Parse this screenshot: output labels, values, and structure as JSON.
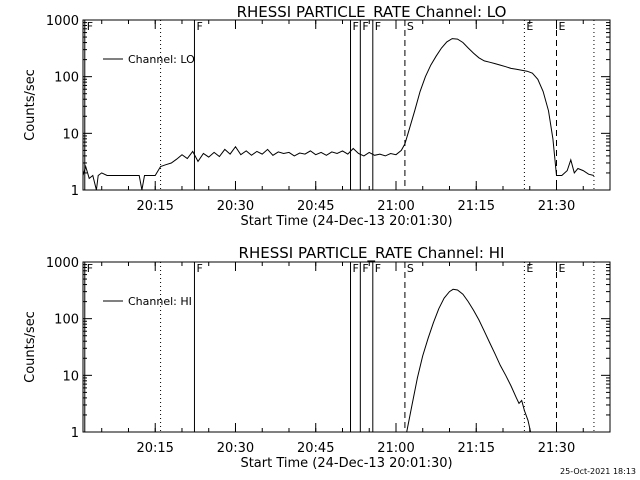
{
  "chart_data": [
    {
      "type": "line",
      "title": "RHESSI PARTICLE_RATE Channel: LO",
      "xlabel": "Start Time (24-Dec-13 20:01:30)",
      "ylabel": "Counts/sec",
      "yscale": "log",
      "xlim": [
        "20:01:30",
        "21:40:00"
      ],
      "ylim": [
        1,
        1000
      ],
      "x_ticks": [
        "20:15",
        "20:30",
        "20:45",
        "21:00",
        "21:15",
        "21:30"
      ],
      "y_ticks": [
        "1",
        "10",
        "100",
        "1000"
      ],
      "legend": {
        "placement": "top-left",
        "entries": [
          "Channel: LO"
        ]
      },
      "grid": false,
      "flag_markers": [
        {
          "label": "F",
          "time": "20:01:50",
          "style": "solid"
        },
        {
          "label": "F",
          "time": "20:22:20",
          "style": "solid"
        },
        {
          "label": "F",
          "time": "20:51:30",
          "style": "solid"
        },
        {
          "label": "F",
          "time": "20:53:20",
          "style": "solid"
        },
        {
          "label": "F",
          "time": "20:55:40",
          "style": "solid"
        },
        {
          "label": "S",
          "time": "21:01:40",
          "style": "dashed"
        },
        {
          "label": "E",
          "time": "21:24:00",
          "style": "dotted"
        },
        {
          "label": "E",
          "time": "21:30:00",
          "style": "dashed"
        }
      ],
      "unlabeled_markers": [
        {
          "time": "20:16:00",
          "style": "dotted"
        },
        {
          "time": "21:37:00",
          "style": "dotted"
        }
      ],
      "series": [
        {
          "name": "Channel: LO",
          "points": [
            [
              "20:01:30",
              1.8
            ],
            [
              "20:02:00",
              2.6
            ],
            [
              "20:02:40",
              1.6
            ],
            [
              "20:03:20",
              1.8
            ],
            [
              "20:04:00",
              1.0
            ],
            [
              "20:04:20",
              1.8
            ],
            [
              "20:05:00",
              2.0
            ],
            [
              "20:06:00",
              1.8
            ],
            [
              "20:08:00",
              1.8
            ],
            [
              "20:10:00",
              1.8
            ],
            [
              "20:12:00",
              1.8
            ],
            [
              "20:12:30",
              1.0
            ],
            [
              "20:13:00",
              1.8
            ],
            [
              "20:15:00",
              1.8
            ],
            [
              "20:16:00",
              2.6
            ],
            [
              "20:17:00",
              2.8
            ],
            [
              "20:18:00",
              3.0
            ],
            [
              "20:19:00",
              3.5
            ],
            [
              "20:20:00",
              4.2
            ],
            [
              "20:21:00",
              3.6
            ],
            [
              "20:22:00",
              4.8
            ],
            [
              "20:23:00",
              3.2
            ],
            [
              "20:24:00",
              4.4
            ],
            [
              "20:25:00",
              3.8
            ],
            [
              "20:26:00",
              4.6
            ],
            [
              "20:27:00",
              3.9
            ],
            [
              "20:28:00",
              5.2
            ],
            [
              "20:29:00",
              4.3
            ],
            [
              "20:30:00",
              5.8
            ],
            [
              "20:31:00",
              4.2
            ],
            [
              "20:32:00",
              4.9
            ],
            [
              "20:33:00",
              4.1
            ],
            [
              "20:34:00",
              4.8
            ],
            [
              "20:35:00",
              4.3
            ],
            [
              "20:36:00",
              5.2
            ],
            [
              "20:37:00",
              4.1
            ],
            [
              "20:38:00",
              4.7
            ],
            [
              "20:39:00",
              4.4
            ],
            [
              "20:40:00",
              4.6
            ],
            [
              "20:41:00",
              4.0
            ],
            [
              "20:42:00",
              4.5
            ],
            [
              "20:43:00",
              4.3
            ],
            [
              "20:44:00",
              4.9
            ],
            [
              "20:45:00",
              4.2
            ],
            [
              "20:46:00",
              4.6
            ],
            [
              "20:47:00",
              4.1
            ],
            [
              "20:48:00",
              4.7
            ],
            [
              "20:49:00",
              4.4
            ],
            [
              "20:50:00",
              4.9
            ],
            [
              "20:51:00",
              4.3
            ],
            [
              "20:52:00",
              5.4
            ],
            [
              "20:53:00",
              4.4
            ],
            [
              "20:54:00",
              4.0
            ],
            [
              "20:55:00",
              4.6
            ],
            [
              "20:56:00",
              4.1
            ],
            [
              "20:57:00",
              4.3
            ],
            [
              "20:58:00",
              4.0
            ],
            [
              "20:59:00",
              4.4
            ],
            [
              "21:00:00",
              4.2
            ],
            [
              "21:01:00",
              5.0
            ],
            [
              "21:01:40",
              6.5
            ],
            [
              "21:02:30",
              12
            ],
            [
              "21:03:30",
              25
            ],
            [
              "21:04:30",
              55
            ],
            [
              "21:05:30",
              100
            ],
            [
              "21:06:30",
              160
            ],
            [
              "21:07:30",
              230
            ],
            [
              "21:08:30",
              320
            ],
            [
              "21:09:30",
              410
            ],
            [
              "21:10:30",
              470
            ],
            [
              "21:11:30",
              460
            ],
            [
              "21:12:30",
              400
            ],
            [
              "21:13:30",
              320
            ],
            [
              "21:14:30",
              260
            ],
            [
              "21:15:30",
              215
            ],
            [
              "21:16:30",
              190
            ],
            [
              "21:17:30",
              180
            ],
            [
              "21:18:30",
              170
            ],
            [
              "21:19:30",
              160
            ],
            [
              "21:20:30",
              150
            ],
            [
              "21:21:30",
              140
            ],
            [
              "21:22:30",
              135
            ],
            [
              "21:23:30",
              130
            ],
            [
              "21:24:30",
              125
            ],
            [
              "21:25:30",
              115
            ],
            [
              "21:26:30",
              90
            ],
            [
              "21:27:30",
              55
            ],
            [
              "21:28:30",
              25
            ],
            [
              "21:29:20",
              8
            ],
            [
              "21:30:00",
              1.8
            ],
            [
              "21:31:00",
              1.8
            ],
            [
              "21:32:00",
              2.2
            ],
            [
              "21:32:40",
              3.4
            ],
            [
              "21:33:20",
              2.0
            ],
            [
              "21:34:00",
              2.4
            ],
            [
              "21:35:00",
              2.2
            ],
            [
              "21:36:00",
              1.9
            ],
            [
              "21:37:00",
              1.8
            ]
          ]
        }
      ]
    },
    {
      "type": "line",
      "title": "RHESSI PARTICLE_RATE Channel: HI",
      "xlabel": "Start Time (24-Dec-13 20:01:30)",
      "ylabel": "Counts/sec",
      "yscale": "log",
      "xlim": [
        "20:01:30",
        "21:40:00"
      ],
      "ylim": [
        1,
        1000
      ],
      "x_ticks": [
        "20:15",
        "20:30",
        "20:45",
        "21:00",
        "21:15",
        "21:30"
      ],
      "y_ticks": [
        "1",
        "10",
        "100",
        "1000"
      ],
      "legend": {
        "placement": "top-left",
        "entries": [
          "Channel: HI"
        ]
      },
      "grid": false,
      "flag_markers": [
        {
          "label": "F",
          "time": "20:01:50",
          "style": "solid"
        },
        {
          "label": "F",
          "time": "20:22:20",
          "style": "solid"
        },
        {
          "label": "F",
          "time": "20:51:30",
          "style": "solid"
        },
        {
          "label": "F",
          "time": "20:53:20",
          "style": "solid"
        },
        {
          "label": "F",
          "time": "20:55:40",
          "style": "solid"
        },
        {
          "label": "S",
          "time": "21:01:40",
          "style": "dashed"
        },
        {
          "label": "E",
          "time": "21:24:00",
          "style": "dotted"
        },
        {
          "label": "E",
          "time": "21:30:00",
          "style": "dashed"
        }
      ],
      "unlabeled_markers": [
        {
          "time": "20:16:00",
          "style": "dotted"
        },
        {
          "time": "21:37:00",
          "style": "dotted"
        }
      ],
      "series": [
        {
          "name": "Channel: HI",
          "points": [
            [
              "21:02:00",
              1.0
            ],
            [
              "21:03:00",
              3
            ],
            [
              "21:04:00",
              9
            ],
            [
              "21:05:00",
              22
            ],
            [
              "21:06:00",
              45
            ],
            [
              "21:07:00",
              85
            ],
            [
              "21:08:00",
              150
            ],
            [
              "21:09:00",
              230
            ],
            [
              "21:10:00",
              300
            ],
            [
              "21:10:40",
              330
            ],
            [
              "21:11:30",
              320
            ],
            [
              "21:12:30",
              270
            ],
            [
              "21:13:30",
              200
            ],
            [
              "21:14:30",
              140
            ],
            [
              "21:15:30",
              95
            ],
            [
              "21:16:30",
              60
            ],
            [
              "21:17:30",
              38
            ],
            [
              "21:18:30",
              24
            ],
            [
              "21:19:30",
              15
            ],
            [
              "21:20:30",
              10
            ],
            [
              "21:21:30",
              6.5
            ],
            [
              "21:22:30",
              4.0
            ],
            [
              "21:23:00",
              3.2
            ],
            [
              "21:23:30",
              3.6
            ],
            [
              "21:24:00",
              2.4
            ],
            [
              "21:24:40",
              1.6
            ],
            [
              "21:25:10",
              1.0
            ]
          ]
        }
      ]
    }
  ],
  "footer": {
    "stamp": "25-Oct-2021 18:13"
  }
}
